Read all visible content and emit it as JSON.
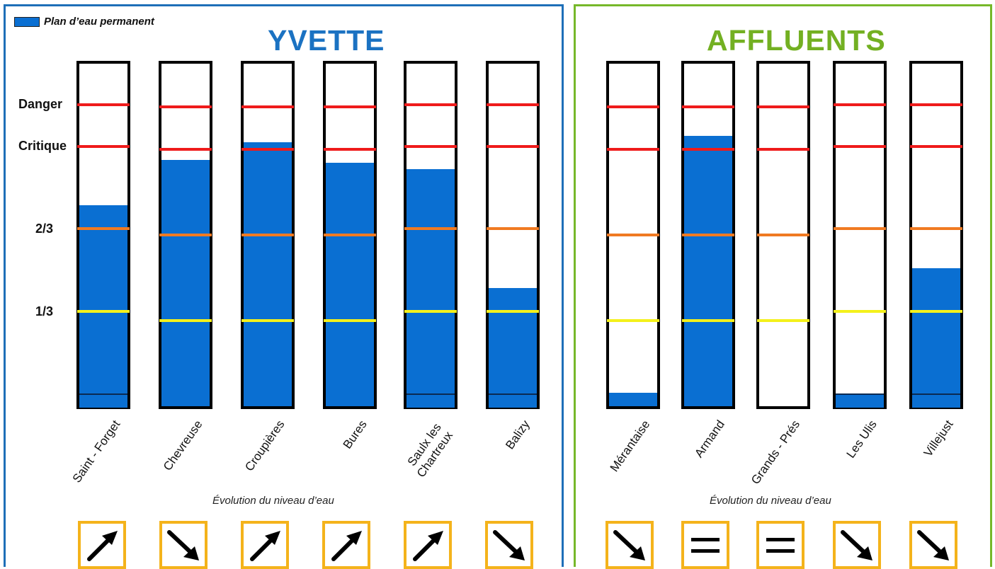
{
  "legend": {
    "label": "Plan d’eau permanent",
    "color": "#0a6fd2"
  },
  "colors": {
    "danger": "#ef1b1b",
    "critique": "#ef1b1b",
    "two_thirds": "#f07a22",
    "one_third": "#f4f11b",
    "water": "#0a6fd2",
    "trend_frame": "#f4b31b"
  },
  "levels": {
    "danger": "Danger",
    "critique": "Critique",
    "two_thirds": "2/3",
    "one_third": "1/3"
  },
  "yvette": {
    "title": "YVETTE",
    "evolution_label": "Évolution du niveau d’eau",
    "stations": [
      {
        "name": "Saint - Forget",
        "water_level": 0.57,
        "permanent": true,
        "trend": "up"
      },
      {
        "name": "Chevreuse",
        "water_level": 0.72,
        "permanent": false,
        "trend": "down"
      },
      {
        "name": "Croupières",
        "water_level": 0.77,
        "permanent": false,
        "trend": "up"
      },
      {
        "name": "Bures",
        "water_level": 0.71,
        "permanent": false,
        "trend": "up"
      },
      {
        "name": "Saulx les\nChartreux",
        "water_level": 0.68,
        "permanent": true,
        "trend": "up"
      },
      {
        "name": "Balizy",
        "water_level": 0.32,
        "permanent": true,
        "trend": "down"
      }
    ]
  },
  "affluents": {
    "title": "AFFLUENTS",
    "evolution_label": "Évolution du niveau d’eau",
    "stations": [
      {
        "name": "Mérantaise",
        "water_level": 0.04,
        "permanent": false,
        "trend": "down"
      },
      {
        "name": "Armand",
        "water_level": 0.79,
        "permanent": false,
        "trend": "stable"
      },
      {
        "name": "Grands - Prés",
        "water_level": 0.0,
        "permanent": false,
        "trend": "stable"
      },
      {
        "name": "Les Ulis",
        "water_level": 0.0,
        "permanent": true,
        "trend": "down"
      },
      {
        "name": "Villejust",
        "water_level": 0.38,
        "permanent": true,
        "trend": "down"
      }
    ]
  }
}
